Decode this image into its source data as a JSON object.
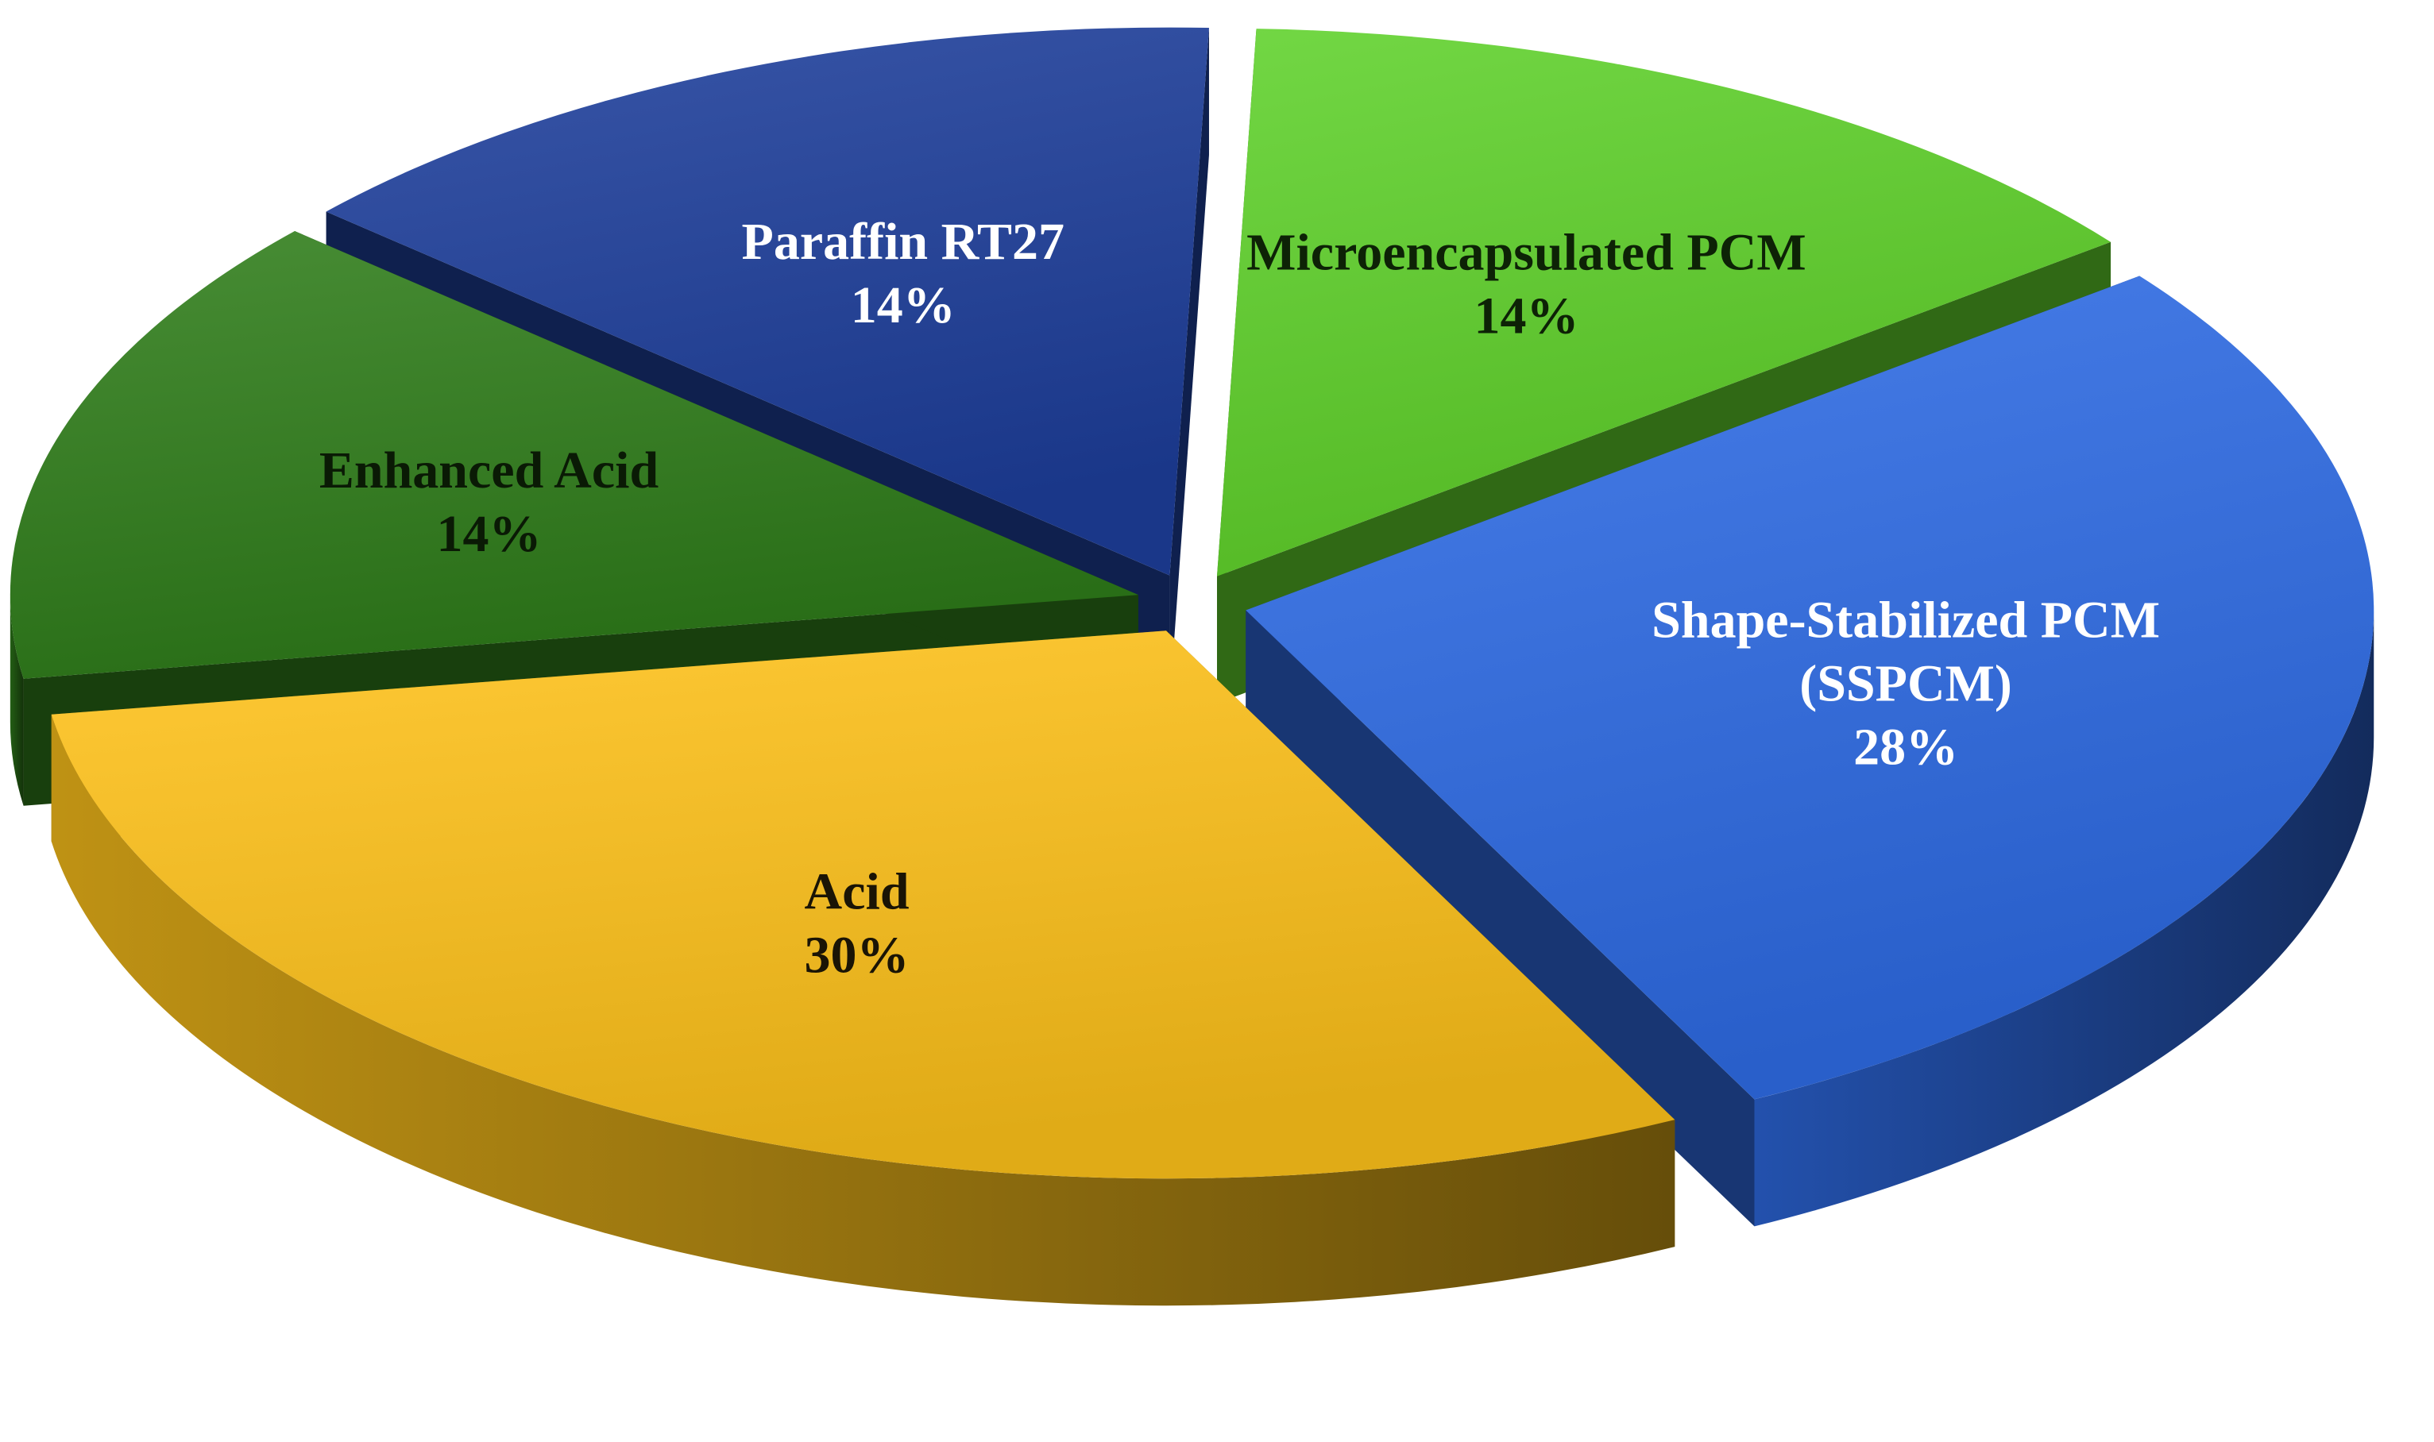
{
  "chart_data": {
    "type": "pie",
    "style": "3d-exploded",
    "title": "",
    "slices": [
      {
        "name": "Microencapsulated PCM",
        "label_lines": [
          "Microencapsulated PCM",
          "14%"
        ],
        "value": 14,
        "color": "#5fd22a",
        "label_color": "#0d2206"
      },
      {
        "name": "Shape-Stabilized PCM (SSPCM)",
        "label_lines": [
          "Shape-Stabilized PCM",
          "(SSPCM)",
          "28%"
        ],
        "value": 28,
        "color": "#2f6ce6",
        "label_color": "#ffffff"
      },
      {
        "name": "Acid",
        "label_lines": [
          "Acid",
          "30%"
        ],
        "value": 30,
        "color": "#ffc21a",
        "label_color": "#1a1405"
      },
      {
        "name": "Enhanced Acid",
        "label_lines": [
          "Enhanced Acid",
          "14%"
        ],
        "value": 14,
        "color": "#2f7d1a",
        "label_color": "#0a1a05"
      },
      {
        "name": "Paraffin RT27",
        "label_lines": [
          "Paraffin RT27",
          "14%"
        ],
        "value": 14,
        "color": "#1e3f9c",
        "label_color": "#ffffff"
      }
    ]
  }
}
